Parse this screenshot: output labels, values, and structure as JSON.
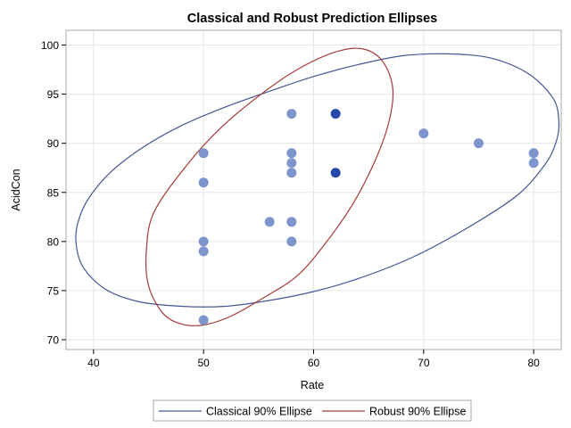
{
  "chart_data": {
    "type": "scatter",
    "title": "Classical and Robust Prediction Ellipses",
    "xlabel": "Rate",
    "ylabel": "AcidCon",
    "xlim": [
      37.5,
      82.5
    ],
    "ylim": [
      69,
      101.5
    ],
    "xticks": [
      40,
      50,
      60,
      70,
      80
    ],
    "yticks": [
      70,
      75,
      80,
      85,
      90,
      95,
      100
    ],
    "grid": true,
    "legend_position": "bottom-center",
    "marker_color": "#7d95cc",
    "highlight_marker_color": "#2448a8",
    "points": [
      {
        "x": 50,
        "y": 72
      },
      {
        "x": 50,
        "y": 79
      },
      {
        "x": 50,
        "y": 80
      },
      {
        "x": 50,
        "y": 86
      },
      {
        "x": 50,
        "y": 89
      },
      {
        "x": 56,
        "y": 82
      },
      {
        "x": 58,
        "y": 80
      },
      {
        "x": 58,
        "y": 82
      },
      {
        "x": 58,
        "y": 87
      },
      {
        "x": 58,
        "y": 88
      },
      {
        "x": 58,
        "y": 89
      },
      {
        "x": 58,
        "y": 93
      },
      {
        "x": 62,
        "y": 87,
        "highlight": true
      },
      {
        "x": 62,
        "y": 93,
        "highlight": true
      },
      {
        "x": 70,
        "y": 91
      },
      {
        "x": 75,
        "y": 90
      },
      {
        "x": 80,
        "y": 88
      },
      {
        "x": 80,
        "y": 89
      }
    ],
    "series": [
      {
        "name": "Classical 90% Ellipse",
        "color": "#445694",
        "x": [
          38.6,
          39.5,
          41.5,
          44.5,
          48,
          52,
          56,
          60,
          64,
          68,
          72,
          76,
          79.5,
          81.8,
          82.3,
          82,
          81,
          78.5,
          74,
          69,
          64,
          60,
          56,
          52,
          48,
          44,
          41,
          39,
          38.4,
          38.6
        ],
        "y": [
          82,
          84.3,
          87,
          89.6,
          91.8,
          93.7,
          95.3,
          96.8,
          98,
          98.9,
          99.1,
          98.7,
          97.1,
          94.5,
          92,
          90,
          87.8,
          84.7,
          81.4,
          78.4,
          76.2,
          74.9,
          74,
          73.4,
          73.4,
          73.9,
          75.2,
          77.5,
          80,
          82
        ]
      },
      {
        "name": "Robust 90% Ellipse",
        "color": "#a63a36",
        "x": [
          45.5,
          48.5,
          51.5,
          55,
          58.5,
          62,
          64.5,
          66.3,
          67.2,
          66.8,
          65.5,
          63.5,
          61,
          58.5,
          55.5,
          52.5,
          50,
          48,
          46.3,
          45,
          44.8,
          45.5
        ],
        "y": [
          83,
          87.8,
          91.5,
          94.8,
          97.5,
          99.3,
          99.6,
          98.3,
          95.5,
          92,
          88,
          83.7,
          79.7,
          76.5,
          74.3,
          72.4,
          71.5,
          71.6,
          72.7,
          75.5,
          79,
          83
        ]
      }
    ]
  }
}
